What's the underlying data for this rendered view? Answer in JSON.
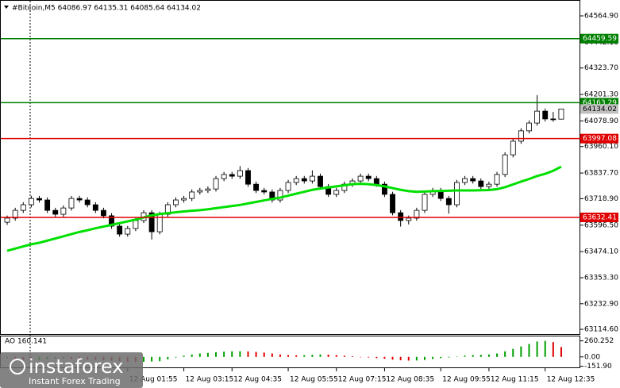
{
  "chart_data": [
    {
      "type": "candlestick",
      "title": "#Bitcoin,M5  64086.97 64135.31 64085.64 64134.02",
      "categories": [
        null,
        null,
        null,
        null,
        null,
        null,
        null,
        null,
        null,
        null,
        null,
        null,
        null,
        null,
        null,
        "12 Aug 01:55",
        null,
        null,
        null,
        null,
        null,
        null,
        "12 Aug 03:15",
        null,
        null,
        null,
        null,
        null,
        "12 Aug 04:35",
        null,
        null,
        null,
        null,
        null,
        null,
        "12 Aug 05:55",
        null,
        null,
        null,
        null,
        null,
        "12 Aug 07:15",
        null,
        null,
        null,
        null,
        null,
        "12 Aug 08:35",
        null,
        null,
        null,
        null,
        null,
        null,
        "12 Aug 09:55",
        null,
        null,
        null,
        null,
        null,
        "12 Aug 11:15",
        null,
        null,
        null,
        null,
        null,
        null,
        "12 Aug 12:35",
        null,
        null
      ],
      "open": [
        63610,
        63629,
        63665,
        63691,
        63720,
        63713,
        63665,
        63647,
        63676,
        63720,
        63713,
        63691,
        63665,
        63640,
        63592,
        63555,
        63581,
        63618,
        63654,
        63566,
        63647,
        63691,
        63713,
        63720,
        63750,
        63757,
        63764,
        63812,
        63831,
        63823,
        63849,
        63786,
        63757,
        63750,
        63713,
        63757,
        63794,
        63812,
        63801,
        63823,
        63775,
        63739,
        63757,
        63786,
        63801,
        63823,
        63812,
        63786,
        63739,
        63654,
        63618,
        63629,
        63665,
        63739,
        63757,
        63720,
        63691,
        63794,
        63812,
        63801,
        63775,
        63786,
        63831,
        63922,
        63985,
        64033,
        64069,
        64124,
        64088,
        64086.97
      ],
      "high": [
        63641,
        63677,
        63703,
        63732,
        63732,
        63725,
        63677,
        63688,
        63732,
        63732,
        63725,
        63703,
        63677,
        63652,
        63604,
        63593,
        63630,
        63666,
        63666,
        63659,
        63703,
        63725,
        63732,
        63762,
        63769,
        63776,
        63824,
        63843,
        63843,
        63870,
        63861,
        63798,
        63769,
        63762,
        63769,
        63806,
        63824,
        63824,
        63850,
        63835,
        63787,
        63769,
        63798,
        63813,
        63835,
        63835,
        63824,
        63798,
        63751,
        63666,
        63641,
        63677,
        63751,
        63769,
        63769,
        63732,
        63806,
        63824,
        63824,
        63813,
        63798,
        63843,
        63934,
        63997,
        64045,
        64081,
        64198,
        64136,
        64120,
        64135.31
      ],
      "low": [
        63598,
        63617,
        63653,
        63679,
        63701,
        63653,
        63635,
        63635,
        63664,
        63701,
        63679,
        63653,
        63628,
        63580,
        63543,
        63543,
        63569,
        63606,
        63530,
        63554,
        63635,
        63679,
        63701,
        63708,
        63738,
        63745,
        63752,
        63800,
        63811,
        63811,
        63774,
        63745,
        63738,
        63701,
        63701,
        63745,
        63782,
        63789,
        63789,
        63763,
        63727,
        63727,
        63745,
        63774,
        63789,
        63800,
        63774,
        63727,
        63642,
        63590,
        63600,
        63617,
        63653,
        63727,
        63708,
        63650,
        63679,
        63782,
        63789,
        63763,
        63763,
        63774,
        63819,
        63910,
        63973,
        64021,
        64057,
        64076,
        64075,
        64085.64
      ],
      "close": [
        63629,
        63665,
        63691,
        63720,
        63713,
        63665,
        63647,
        63676,
        63720,
        63713,
        63691,
        63665,
        63640,
        63592,
        63555,
        63581,
        63618,
        63654,
        63566,
        63647,
        63691,
        63713,
        63720,
        63750,
        63757,
        63764,
        63812,
        63831,
        63823,
        63849,
        63786,
        63757,
        63750,
        63713,
        63757,
        63794,
        63812,
        63801,
        63823,
        63775,
        63739,
        63757,
        63786,
        63801,
        63823,
        63812,
        63786,
        63739,
        63654,
        63618,
        63629,
        63665,
        63739,
        63757,
        63720,
        63691,
        63794,
        63812,
        63801,
        63775,
        63786,
        63831,
        63922,
        63985,
        64033,
        64069,
        64124,
        64088,
        64087,
        64134.02
      ],
      "up_color": "#ffffff",
      "down_color": "#000000",
      "ylim": [
        63089,
        64620
      ],
      "yticks": [
        {
          "value": 64564.9,
          "label": "64564.90"
        },
        {
          "value": 64442.1,
          "label": "64442.10"
        },
        {
          "value": 64323.7,
          "label": "64323.70"
        },
        {
          "value": 64201.3,
          "label": "64201.30"
        },
        {
          "value": 64078.9,
          "label": "64078.90"
        },
        {
          "value": 63960.1,
          "label": "63960.10"
        },
        {
          "value": 63837.7,
          "label": "63837.70"
        },
        {
          "value": 63718.9,
          "label": "63718.90"
        },
        {
          "value": 63596.5,
          "label": "63596.50"
        },
        {
          "value": 63474.1,
          "label": "63474.10"
        },
        {
          "value": 63353.3,
          "label": "63353.30"
        },
        {
          "value": 63232.9,
          "label": "63232.90"
        },
        {
          "value": 63114.6,
          "label": "63114.60"
        }
      ],
      "moving_average": {
        "color": "#00e000",
        "values": [
          63478,
          63488,
          63498,
          63508,
          63515,
          63525,
          63535,
          63545,
          63555,
          63565,
          63573,
          63582,
          63590,
          63598,
          63606,
          63614,
          63622,
          63632,
          63642,
          63648,
          63652,
          63656,
          63660,
          63663,
          63666,
          63670,
          63675,
          63680,
          63685,
          63690,
          63697,
          63704,
          63711,
          63718,
          63724,
          63733,
          63742,
          63751,
          63760,
          63766,
          63771,
          63776,
          63781,
          63786,
          63788,
          63786,
          63782,
          63776,
          63768,
          63760,
          63754,
          63751,
          63752,
          63754,
          63755,
          63756,
          63757,
          63757,
          63757,
          63758,
          63759,
          63763,
          63772,
          63785,
          63798,
          63810,
          63824,
          63834,
          63848,
          63867
        ]
      },
      "levels": [
        {
          "value": 64459.59,
          "color": "#008000"
        },
        {
          "value": 64163.29,
          "color": "#008000"
        },
        {
          "value": 63997.08,
          "color": "#e00000"
        },
        {
          "value": 63632.41,
          "color": "#e00000"
        }
      ],
      "last_price": {
        "value": 64134.02,
        "color": "#c0c0c0"
      }
    },
    {
      "type": "histogram",
      "title": "AO 160.141",
      "values": [
        -20,
        -35,
        -50,
        -60,
        -55,
        -40,
        -30,
        -25,
        -30,
        -40,
        -45,
        -50,
        -55,
        -60,
        -70,
        -80,
        -85,
        -80,
        -75,
        -70,
        -40,
        -10,
        20,
        40,
        55,
        65,
        75,
        85,
        90,
        92,
        88,
        80,
        70,
        55,
        40,
        30,
        25,
        28,
        35,
        40,
        38,
        30,
        20,
        10,
        0,
        -10,
        -20,
        -30,
        -45,
        -55,
        -60,
        -58,
        -50,
        -35,
        -20,
        -10,
        5,
        20,
        30,
        35,
        40,
        55,
        90,
        130,
        170,
        210,
        250,
        260,
        240,
        160.141
      ],
      "up_color": "#00a000",
      "down_color": "#e00000",
      "ylim": [
        -170,
        332
      ],
      "yticks": [
        260.252,
        {
          "value": 0,
          "label": "0.00"
        },
        {
          "value": -151.9,
          "label": "-151.90"
        }
      ]
    }
  ],
  "watermark": {
    "brand": "instaforex",
    "tagline": "Instant Forex Trading"
  }
}
